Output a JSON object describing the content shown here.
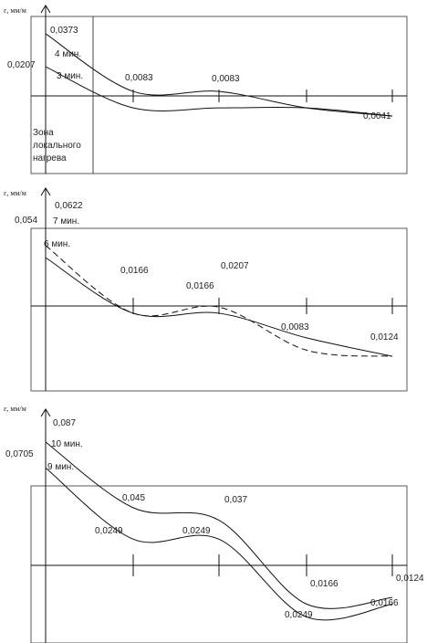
{
  "chart_data": [
    {
      "type": "line",
      "ylabel": "ε, мм/м",
      "ylim": [
        -0.033,
        0.046
      ],
      "zone_label": [
        "Зона",
        "локального",
        "нагрева"
      ],
      "x": [
        0,
        1,
        2,
        3,
        4
      ],
      "series": [
        {
          "name": "4 мин.",
          "values": [
            0.0373,
            0.0083,
            0.0083,
            0.0,
            -0.0041
          ],
          "style": "solid",
          "value_labels": {
            "0": "0,0373",
            "1": "0,0083",
            "2": "0,0083",
            "4": "0,0041"
          }
        },
        {
          "name": "3 мин.",
          "values": [
            0.0207,
            0.0,
            0.0,
            0.0,
            -0.0041
          ],
          "style": "solid",
          "value_labels": {
            "0": "0,0207"
          }
        }
      ]
    },
    {
      "type": "line",
      "ylabel": "ε, мм/м",
      "ylim": [
        -0.0345,
        0.075
      ],
      "x": [
        0,
        1,
        2,
        3,
        4
      ],
      "series": [
        {
          "name": "7 мин.",
          "values": [
            0.0622,
            0.0166,
            0.0207,
            -0.0083,
            -0.0124
          ],
          "style": "dashed",
          "value_labels": {
            "0": "0,0622",
            "2": "0,0207",
            "3": "0,0083"
          }
        },
        {
          "name": "6 мин.",
          "values": [
            0.054,
            0.0166,
            0.0166,
            0.0,
            -0.0124
          ],
          "style": "solid",
          "value_labels": {
            "0": "0,054",
            "1": "0,0166",
            "2": "0,0166",
            "4": "0,0124"
          }
        }
      ]
    },
    {
      "type": "line",
      "ylabel": "ε, мм/м",
      "ylim": [
        -0.0415,
        0.0975
      ],
      "x": [
        0,
        1,
        2,
        3,
        4
      ],
      "series": [
        {
          "name": "10 мин.",
          "values": [
            0.087,
            0.045,
            0.037,
            -0.0166,
            -0.0124
          ],
          "style": "solid",
          "value_labels": {
            "0": "0,087",
            "1": "0,045",
            "2": "0,037",
            "3": "0,0166",
            "4": "0,0124"
          }
        },
        {
          "name": "9 мин.",
          "values": [
            0.0705,
            0.0249,
            0.0249,
            -0.0249,
            -0.0166
          ],
          "style": "solid",
          "value_labels": {
            "0": "0,0705",
            "1": "0,0249",
            "2": "0,0249",
            "3": "0,0249",
            "4": "0,0166"
          }
        }
      ]
    }
  ]
}
